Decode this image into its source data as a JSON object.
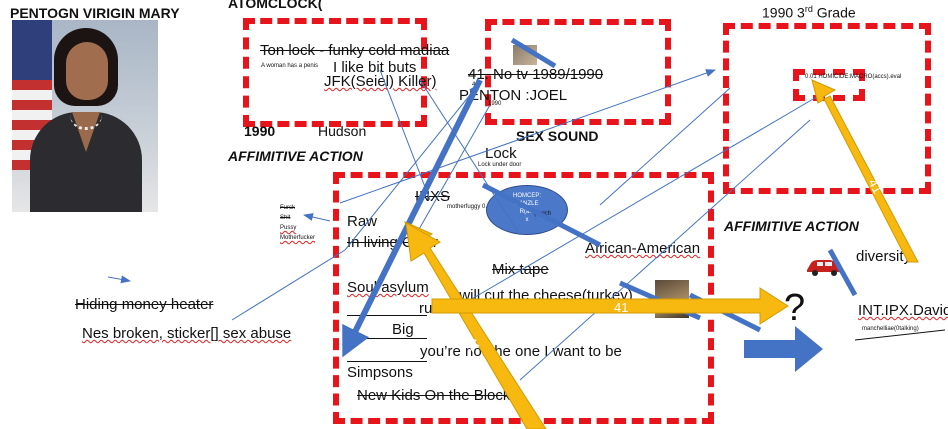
{
  "header": {
    "left_title": "PENTOGN VIRIGIN MARY",
    "atomclock": "ATOMCLOCK(",
    "grade": "1990 3rd Grade"
  },
  "box1": {
    "line1": "Ton lock - funky cold madiaa",
    "tiny": "A woman has a penis",
    "line2": "I like bit buts",
    "line3": "JFK(Seiel) Killer)",
    "year": "1990",
    "city": "Hudson"
  },
  "box2": {
    "line1": "41. No tv 1989/1990",
    "line2": "PENTON :JOEL",
    "sex_sound": "SEX SOUND",
    "tiny_numeral": "41.",
    "tiny_sub": "1990"
  },
  "lock": {
    "label": "Lock",
    "sub": "Lock under door"
  },
  "box3": {
    "tiny": "0.01 HOMICIDE:MACRO(accs).eval"
  },
  "affirmative_1": "AFFIMITIVE ACTION",
  "affirmative_2": "AFFIMITIVE ACTION",
  "box4": {
    "inxs": "INXS",
    "tiny_right": "motherfuggy 0.1",
    "raw": "Raw",
    "in_living": "In living Color",
    "mixtape": "Mix tape",
    "soul": "Soul asylum",
    "cut_cheese": "I will cut the cheese(turkey)",
    "runaway": "runaway",
    "big": "Big",
    "not_one": "you’re not the one I want to be",
    "simpsons": "Simpsons",
    "nkotb": "New Kids On the Block"
  },
  "circle": {
    "line1": "HOMCEP:",
    "line2": "ZANZLE",
    "line3": "R(a...",
    "line4": "x",
    "side": "(swich"
  },
  "african": "African-American",
  "curse_list": [
    "Furck",
    "Shit",
    "Pussy",
    "Motherfucker"
  ],
  "left_bottom": {
    "hiding": "Hiding money heater",
    "nes": "Nes broken, sticker[] sex abuse"
  },
  "arrows": {
    "label_41_a": "41",
    "label_41_b": "41",
    "label_41_c": "41"
  },
  "question": "?",
  "right": {
    "diversity": "diversity",
    "int_ipx": "INT.IPX.David",
    "tiny": "manchelliae(0talking)"
  },
  "colors": {
    "dashed_box": "#e8141b",
    "arrow_gold": "#f7b90f",
    "arrow_blue": "#4472c4"
  }
}
